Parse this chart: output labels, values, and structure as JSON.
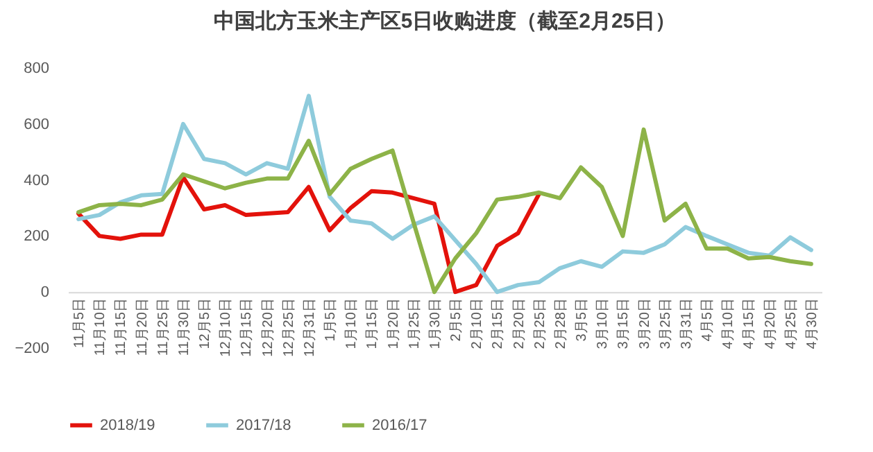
{
  "chart_data": {
    "type": "line",
    "title": "中国北方玉米主产区5日收购进度（截至2月25日）",
    "categories": [
      "11月5日",
      "11月10日",
      "11月15日",
      "11月20日",
      "11月25日",
      "11月30日",
      "12月5日",
      "12月10日",
      "12月15日",
      "12月20日",
      "12月25日",
      "12月31日",
      "1月5日",
      "1月10日",
      "1月15日",
      "1月20日",
      "1月25日",
      "1月30日",
      "2月5日",
      "2月10日",
      "2月15日",
      "2月20日",
      "2月25日",
      "2月28日",
      "3月5日",
      "3月10日",
      "3月15日",
      "3月20日",
      "3月25日",
      "3月31日",
      "4月5日",
      "4月10日",
      "4月15日",
      "4月20日",
      "4月25日",
      "4月30日"
    ],
    "series": [
      {
        "name": "2018/19",
        "color": "#e3120b",
        "values": [
          280,
          200,
          190,
          205,
          205,
          410,
          295,
          310,
          275,
          280,
          285,
          375,
          220,
          300,
          360,
          355,
          335,
          315,
          0,
          25,
          165,
          210,
          350,
          null,
          null,
          null,
          null,
          null,
          null,
          null,
          null,
          null,
          null,
          null,
          null,
          null
        ]
      },
      {
        "name": "2017/18",
        "color": "#8ecbdc",
        "values": [
          260,
          275,
          320,
          345,
          350,
          600,
          475,
          460,
          420,
          460,
          440,
          700,
          340,
          255,
          245,
          190,
          240,
          270,
          185,
          100,
          0,
          25,
          35,
          85,
          110,
          90,
          145,
          140,
          170,
          232,
          200,
          170,
          140,
          130,
          195,
          150
        ]
      },
      {
        "name": "2016/17",
        "color": "#8db348",
        "values": [
          285,
          310,
          315,
          310,
          330,
          420,
          395,
          370,
          390,
          405,
          405,
          540,
          350,
          440,
          475,
          505,
          250,
          0,
          120,
          210,
          330,
          340,
          355,
          335,
          445,
          375,
          200,
          580,
          255,
          315,
          155,
          155,
          120,
          125,
          110,
          100
        ]
      }
    ],
    "ylim": [
      -200,
      800
    ],
    "yticks": [
      -200,
      0,
      200,
      400,
      600,
      800
    ],
    "grid": false,
    "legend": "bottom",
    "line_style": "solid",
    "marker": "none"
  }
}
